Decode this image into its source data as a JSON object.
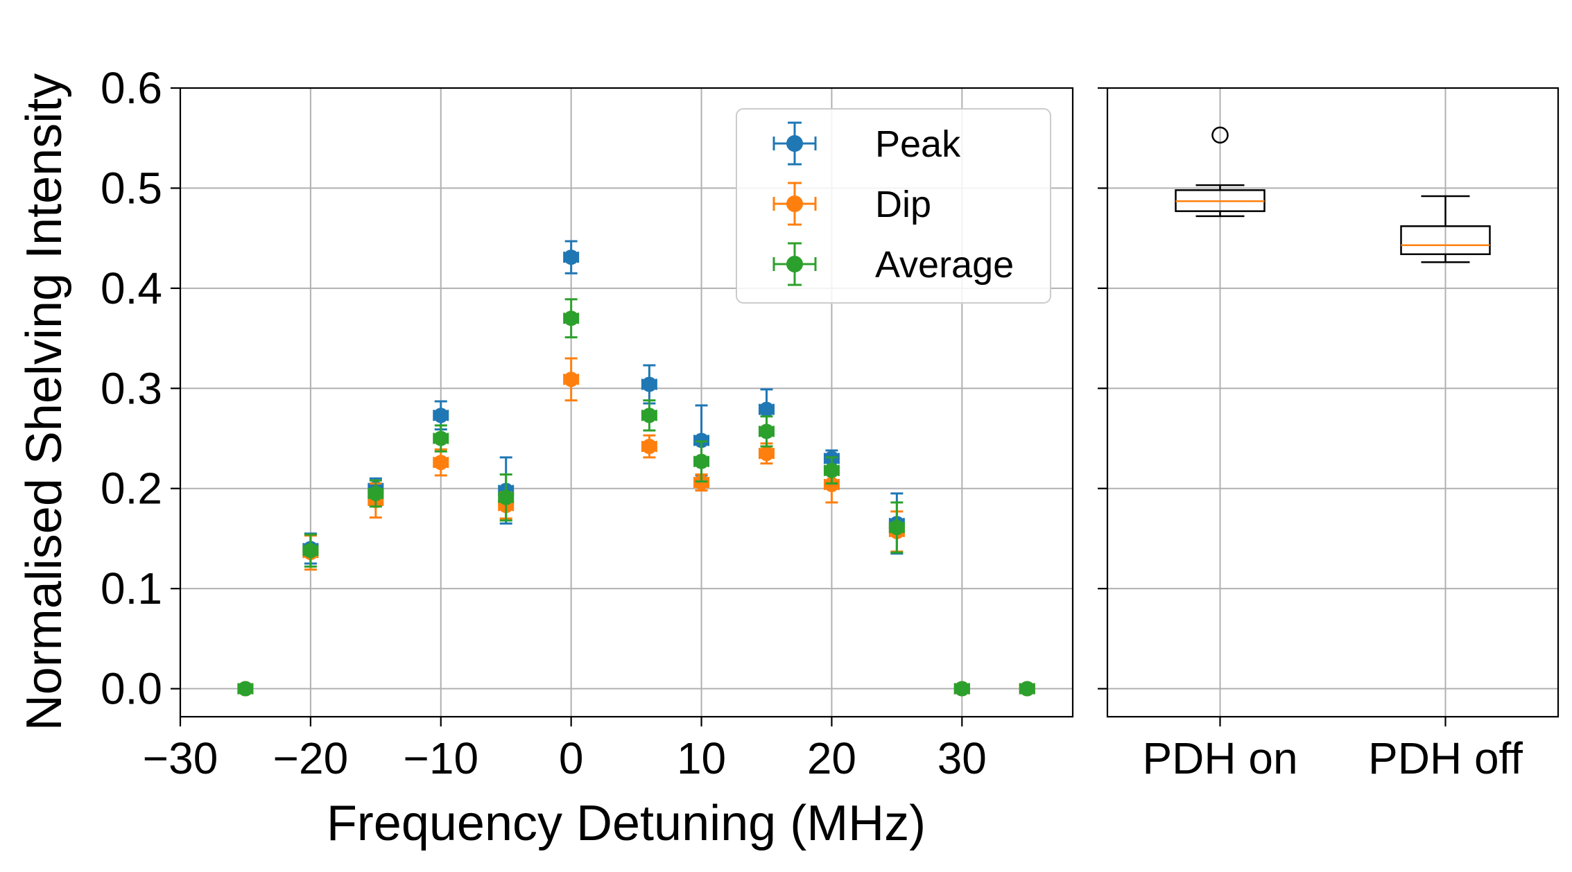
{
  "chart_data": [
    {
      "type": "scatter",
      "xlabel": "Frequency Detuning (MHz)",
      "ylabel": "Normalised Shelving Intensity",
      "xlim": [
        -30,
        38.5
      ],
      "ylim": [
        -0.028,
        0.6
      ],
      "xticks": [
        -30,
        -20,
        -10,
        0,
        10,
        20,
        30
      ],
      "xtick_labels": [
        "−30",
        "−20",
        "−10",
        "0",
        "10",
        "20",
        "30"
      ],
      "yticks": [
        0.0,
        0.1,
        0.2,
        0.3,
        0.4,
        0.5,
        0.6
      ],
      "ytick_labels": [
        "0.0",
        "0.1",
        "0.2",
        "0.3",
        "0.4",
        "0.5",
        "0.6"
      ],
      "grid": true,
      "legend_position": "top-right",
      "x": [
        -25,
        -20,
        -15,
        -10,
        -5,
        0,
        6,
        10,
        15,
        20,
        25,
        30,
        35
      ],
      "series": [
        {
          "name": "Peak",
          "color": "#1f77b4",
          "values": [
            0.0,
            0.14,
            0.2,
            0.273,
            0.198,
            0.431,
            0.304,
            0.248,
            0.279,
            0.23,
            0.165,
            0.0,
            0.0
          ],
          "yerr": [
            0.0,
            0.015,
            0.01,
            0.014,
            0.033,
            0.016,
            0.019,
            0.035,
            0.02,
            0.008,
            0.03,
            0.0,
            0.0
          ]
        },
        {
          "name": "Dip",
          "color": "#ff7f0e",
          "values": [
            0.0,
            0.136,
            0.188,
            0.226,
            0.183,
            0.309,
            0.242,
            0.206,
            0.235,
            0.204,
            0.157,
            0.0,
            0.0
          ],
          "yerr": [
            0.0,
            0.017,
            0.017,
            0.013,
            0.013,
            0.021,
            0.011,
            0.008,
            0.01,
            0.018,
            0.02,
            0.0,
            0.0
          ]
        },
        {
          "name": "Average",
          "color": "#2ca02c",
          "values": [
            0.0,
            0.138,
            0.195,
            0.25,
            0.191,
            0.37,
            0.273,
            0.227,
            0.257,
            0.218,
            0.161,
            0.0,
            0.0
          ],
          "yerr": [
            0.0,
            0.016,
            0.013,
            0.013,
            0.023,
            0.019,
            0.015,
            0.02,
            0.015,
            0.013,
            0.025,
            0.0,
            0.0
          ]
        }
      ]
    },
    {
      "type": "box",
      "categories": [
        "PDH on",
        "PDH off"
      ],
      "ylim": [
        -0.028,
        0.6
      ],
      "grid": true,
      "boxes": [
        {
          "label": "PDH on",
          "whisker_low": 0.472,
          "q1": 0.477,
          "median": 0.487,
          "q3": 0.498,
          "whisker_high": 0.503,
          "outliers": [
            0.553
          ]
        },
        {
          "label": "PDH off",
          "whisker_low": 0.426,
          "q1": 0.434,
          "median": 0.443,
          "q3": 0.462,
          "whisker_high": 0.492,
          "outliers": []
        }
      ],
      "box_color": "#000000",
      "median_color": "#ff7f0e"
    }
  ]
}
